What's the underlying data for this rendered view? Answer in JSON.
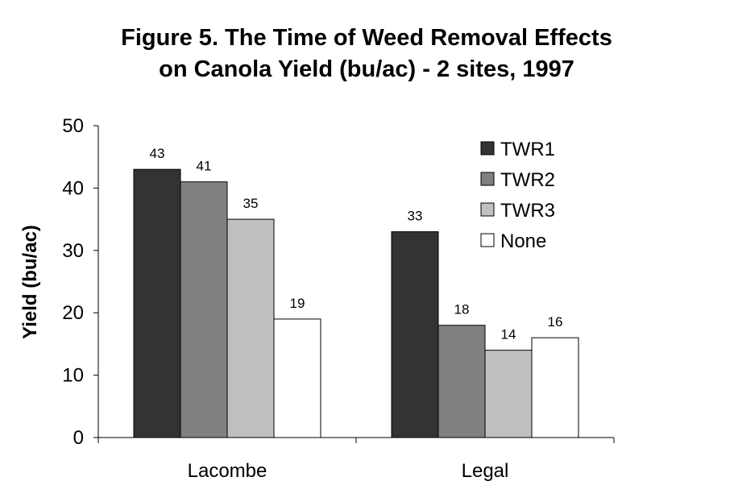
{
  "chart_data": {
    "type": "bar",
    "title_lines": [
      "Figure 5. The Time of Weed Removal Effects",
      "on Canola Yield (bu/ac) - 2 sites, 1997"
    ],
    "xlabel": "",
    "ylabel": "Yield (bu/ac)",
    "ylim": [
      0,
      50
    ],
    "yticks": [
      0,
      10,
      20,
      30,
      40,
      50
    ],
    "categories": [
      "Lacombe",
      "Legal"
    ],
    "series": [
      {
        "name": "TWR1",
        "color": "#333333",
        "values": [
          43,
          33
        ]
      },
      {
        "name": "TWR2",
        "color": "#808080",
        "values": [
          41,
          18
        ]
      },
      {
        "name": "TWR3",
        "color": "#c0c0c0",
        "values": [
          35,
          14
        ]
      },
      {
        "name": "None",
        "color": "#ffffff",
        "values": [
          19,
          16
        ]
      }
    ],
    "grid": false,
    "legend_position": "top-right",
    "data_labels": true
  }
}
